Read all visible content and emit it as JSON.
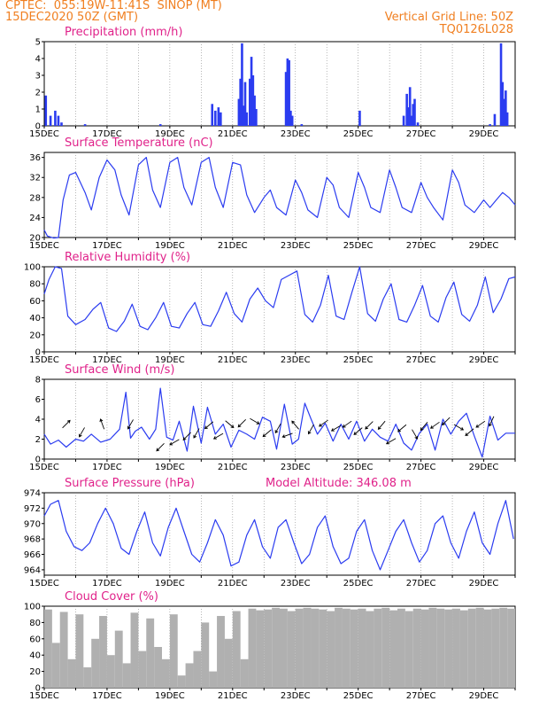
{
  "header": {
    "line1": "CPTEC:  055:19W-11:41S  SINOP (MT)",
    "line2": "15DEC2020 50Z (GMT)",
    "grid_note": "Vertical Grid Line: 50Z",
    "code": "TQ0126L028"
  },
  "colors": {
    "header": "#f07f20",
    "title": "#e0228a",
    "series": "#2b3cf0",
    "cloud": "#b0b0b0",
    "grid": "#888888"
  },
  "chart_data": [
    {
      "type": "bar",
      "title": "Precipitation (mm/h)",
      "ylim": [
        0,
        5
      ],
      "yticks": [
        "0",
        "1",
        "2",
        "3",
        "4",
        "5"
      ],
      "xticks": [
        "15DEC",
        "17DEC",
        "19DEC",
        "21DEC",
        "23DEC",
        "25DEC",
        "27DEC",
        "29DEC"
      ],
      "x_day_range": [
        15,
        30
      ],
      "day": [
        15.05,
        15.2,
        15.35,
        15.45,
        15.55,
        16.3,
        18.7,
        20.35,
        20.45,
        20.55,
        20.62,
        21.2,
        21.25,
        21.3,
        21.35,
        21.4,
        21.45,
        21.55,
        21.6,
        21.65,
        21.7,
        21.75,
        22.7,
        22.75,
        22.8,
        22.85,
        22.9,
        23.2,
        25.05,
        26.45,
        26.55,
        26.6,
        26.65,
        26.7,
        26.75,
        26.8,
        26.9,
        29.2,
        29.35,
        29.55,
        29.6,
        29.65,
        29.7,
        29.75
      ],
      "values": [
        1.8,
        0.6,
        0.9,
        0.6,
        0.2,
        0.1,
        0.1,
        1.3,
        0.9,
        1.1,
        0.8,
        1.6,
        2.8,
        4.9,
        1.2,
        2.6,
        0.8,
        2.8,
        4.1,
        3.0,
        1.8,
        1.0,
        3.2,
        4.0,
        3.9,
        0.9,
        0.6,
        0.1,
        0.9,
        0.6,
        1.9,
        1.1,
        2.3,
        0.6,
        1.3,
        1.6,
        0.2,
        0.1,
        0.7,
        4.9,
        2.6,
        1.6,
        2.1,
        0.8
      ]
    },
    {
      "type": "line",
      "title": "Surface Temperature (nC)",
      "ylim": [
        20,
        37
      ],
      "yticks": [
        "20",
        "24",
        "28",
        "32",
        "36"
      ],
      "xticks": [
        "15DEC",
        "17DEC",
        "19DEC",
        "21DEC",
        "23DEC",
        "25DEC",
        "27DEC",
        "29DEC"
      ],
      "x_day_range": [
        15,
        30
      ],
      "day": [
        15,
        15.1,
        15.3,
        15.45,
        15.6,
        15.8,
        16.0,
        16.3,
        16.5,
        16.75,
        17.0,
        17.25,
        17.45,
        17.7,
        18.0,
        18.25,
        18.45,
        18.7,
        19.0,
        19.25,
        19.45,
        19.7,
        20.0,
        20.25,
        20.45,
        20.7,
        21.0,
        21.25,
        21.45,
        21.7,
        22.0,
        22.2,
        22.4,
        22.7,
        23.0,
        23.2,
        23.4,
        23.7,
        24.0,
        24.2,
        24.4,
        24.7,
        25.0,
        25.2,
        25.4,
        25.7,
        26.0,
        26.2,
        26.4,
        26.7,
        27.0,
        27.2,
        27.4,
        27.7,
        28.0,
        28.2,
        28.4,
        28.7,
        29.0,
        29.2,
        29.4,
        29.6,
        29.8,
        30.0
      ],
      "values": [
        21.5,
        20.3,
        19.9,
        20.0,
        27.5,
        32.5,
        33,
        29,
        25.5,
        32,
        35.5,
        33.5,
        28.5,
        24.5,
        34.5,
        36,
        29.5,
        26,
        35,
        36,
        30,
        26.5,
        35,
        36,
        30,
        26,
        35,
        34.5,
        28.5,
        25,
        28,
        29.5,
        26,
        24.5,
        31.5,
        29,
        25.5,
        24,
        32,
        30.5,
        26,
        24,
        33,
        30,
        26,
        25,
        33.5,
        30,
        26,
        25,
        31,
        28,
        26,
        23.5,
        33.5,
        31,
        26.5,
        25,
        27.5,
        26,
        27.5,
        29,
        28,
        26.5
      ]
    },
    {
      "type": "line",
      "title": "Relative Humidity (%)",
      "ylim": [
        0,
        100
      ],
      "yticks": [
        "0",
        "20",
        "40",
        "60",
        "80",
        "100"
      ],
      "xticks": [
        "15DEC",
        "17DEC",
        "19DEC",
        "21DEC",
        "23DEC",
        "25DEC",
        "27DEC",
        "29DEC"
      ],
      "x_day_range": [
        15,
        30
      ],
      "day": [
        15,
        15.15,
        15.35,
        15.55,
        15.75,
        16.0,
        16.3,
        16.55,
        16.8,
        17.05,
        17.3,
        17.55,
        17.8,
        18.05,
        18.3,
        18.55,
        18.8,
        19.05,
        19.3,
        19.55,
        19.8,
        20.05,
        20.3,
        20.55,
        20.8,
        21.05,
        21.3,
        21.55,
        21.8,
        22.05,
        22.3,
        22.55,
        22.8,
        23.05,
        23.3,
        23.55,
        23.8,
        24.05,
        24.3,
        24.55,
        24.8,
        25.05,
        25.3,
        25.55,
        25.8,
        26.05,
        26.3,
        26.55,
        26.8,
        27.05,
        27.3,
        27.55,
        27.8,
        28.05,
        28.3,
        28.55,
        28.8,
        29.05,
        29.3,
        29.55,
        29.8,
        30.0
      ],
      "values": [
        68,
        85,
        100,
        98,
        42,
        32,
        38,
        50,
        58,
        28,
        24,
        36,
        56,
        30,
        26,
        40,
        58,
        30,
        28,
        45,
        58,
        32,
        30,
        48,
        70,
        45,
        35,
        62,
        75,
        60,
        52,
        85,
        90,
        95,
        44,
        35,
        55,
        90,
        42,
        38,
        70,
        100,
        45,
        36,
        62,
        80,
        38,
        35,
        55,
        78,
        42,
        35,
        64,
        82,
        44,
        36,
        55,
        88,
        46,
        62,
        86,
        88
      ]
    },
    {
      "type": "line",
      "title": "Surface Wind (m/s)",
      "ylim": [
        0,
        8
      ],
      "yticks": [
        "0",
        "2",
        "4",
        "6",
        "8"
      ],
      "xticks": [
        "15DEC",
        "17DEC",
        "19DEC",
        "21DEC",
        "23DEC",
        "25DEC",
        "27DEC",
        "29DEC"
      ],
      "x_day_range": [
        15,
        30
      ],
      "day": [
        15,
        15.2,
        15.45,
        15.7,
        16.0,
        16.25,
        16.5,
        16.8,
        17.1,
        17.4,
        17.6,
        17.75,
        17.9,
        18.1,
        18.35,
        18.55,
        18.7,
        18.9,
        19.1,
        19.3,
        19.55,
        19.75,
        20.0,
        20.2,
        20.45,
        20.7,
        20.95,
        21.2,
        21.45,
        21.7,
        21.95,
        22.2,
        22.4,
        22.65,
        22.9,
        23.1,
        23.3,
        23.5,
        23.7,
        23.95,
        24.2,
        24.45,
        24.7,
        24.95,
        25.2,
        25.45,
        25.7,
        25.95,
        26.2,
        26.45,
        26.7,
        26.95,
        27.2,
        27.45,
        27.7,
        27.95,
        28.2,
        28.45,
        28.7,
        28.95,
        29.2,
        29.45,
        29.7,
        30.0
      ],
      "values": [
        2.5,
        1.5,
        1.9,
        1.2,
        2.0,
        1.8,
        2.5,
        1.7,
        2.0,
        3.0,
        6.7,
        2.1,
        2.8,
        3.2,
        2.0,
        3.0,
        7.1,
        2.2,
        1.9,
        3.8,
        0.8,
        5.3,
        1.6,
        5.2,
        2.5,
        3.5,
        1.2,
        2.9,
        2.5,
        2.0,
        4.2,
        3.8,
        1.0,
        5.5,
        1.5,
        2.0,
        5.6,
        4.0,
        2.5,
        3.6,
        1.8,
        3.5,
        2.0,
        3.8,
        1.8,
        3.0,
        2.2,
        1.8,
        3.5,
        1.6,
        0.9,
        2.6,
        3.5,
        0.9,
        4.0,
        2.5,
        3.8,
        4.6,
        2.3,
        0.2,
        4.3,
        1.9,
        2.6,
        2.6
      ],
      "arrows_day": [
        15.7,
        16.2,
        16.85,
        17.75,
        18.7,
        19.15,
        19.55,
        19.85,
        20.25,
        20.55,
        20.9,
        21.3,
        21.7,
        22.1,
        22.45,
        22.75,
        23.0,
        23.5,
        23.9,
        24.3,
        24.65,
        25.0,
        25.35,
        25.75,
        26.05,
        26.4,
        26.8,
        27.1,
        27.45,
        27.8,
        28.2,
        28.55,
        28.9,
        29.25
      ],
      "arrows_y": [
        3.5,
        2.7,
        3.5,
        3.5,
        1.2,
        1.7,
        2.3,
        2.6,
        3.4,
        2.3,
        3.5,
        3.6,
        3.8,
        2.6,
        3.1,
        2.4,
        3.4,
        3.0,
        3.6,
        3.1,
        3.5,
        2.8,
        3.4,
        3.4,
        1.8,
        3.1,
        2.5,
        3.3,
        3.4,
        3.8,
        3.2,
        2.7,
        3.5,
        3.8
      ],
      "arrows_dir_deg": [
        315,
        120,
        250,
        120,
        135,
        150,
        135,
        120,
        140,
        150,
        40,
        135,
        30,
        140,
        120,
        160,
        230,
        120,
        145,
        150,
        145,
        140,
        135,
        130,
        150,
        140,
        60,
        130,
        145,
        135,
        30,
        140,
        145,
        115
      ]
    },
    {
      "type": "line",
      "title": "Surface Pressure (hPa)",
      "annotation": "Model Altitude: 346.08 m",
      "ylim": [
        963.3,
        974
      ],
      "yticks": [
        "964",
        "966",
        "968",
        "970",
        "972",
        "974"
      ],
      "xticks": [
        "15DEC",
        "17DEC",
        "19DEC",
        "21DEC",
        "23DEC",
        "25DEC",
        "27DEC",
        "29DEC"
      ],
      "x_day_range": [
        15,
        30
      ],
      "day": [
        15,
        15.2,
        15.45,
        15.7,
        15.95,
        16.2,
        16.45,
        16.7,
        16.95,
        17.2,
        17.45,
        17.7,
        17.95,
        18.2,
        18.45,
        18.7,
        18.95,
        19.2,
        19.45,
        19.7,
        19.95,
        20.2,
        20.45,
        20.7,
        20.95,
        21.2,
        21.45,
        21.7,
        21.95,
        22.2,
        22.45,
        22.7,
        22.95,
        23.2,
        23.45,
        23.7,
        23.95,
        24.2,
        24.45,
        24.7,
        24.95,
        25.2,
        25.45,
        25.7,
        25.95,
        26.2,
        26.45,
        26.7,
        26.95,
        27.2,
        27.45,
        27.7,
        27.95,
        28.2,
        28.45,
        28.7,
        28.95,
        29.2,
        29.45,
        29.7,
        29.95
      ],
      "values": [
        971,
        972.5,
        973,
        969,
        967,
        966.5,
        967.5,
        970,
        972,
        970,
        966.8,
        966,
        969,
        971.5,
        967.5,
        965.8,
        969.5,
        972,
        969,
        966,
        965,
        967.5,
        970.5,
        968.5,
        964.5,
        965,
        968.5,
        970.5,
        967,
        965.5,
        969.5,
        970.5,
        967.5,
        964.8,
        966,
        969.5,
        971,
        967,
        964.8,
        965.5,
        969,
        970.5,
        966.5,
        964,
        966.5,
        969,
        970.5,
        967.5,
        965,
        966.5,
        970,
        971,
        967.5,
        965.5,
        969,
        971.5,
        967.5,
        966,
        970,
        973,
        968
      ]
    },
    {
      "type": "bar",
      "title": "Cloud Cover (%)",
      "ylim": [
        0,
        100
      ],
      "yticks": [
        "0",
        "20",
        "40",
        "60",
        "80",
        "100"
      ],
      "xticks": [
        "15DEC",
        "17DEC",
        "19DEC",
        "21DEC",
        "23DEC",
        "25DEC",
        "27DEC",
        "29DEC"
      ],
      "x_day_range": [
        15,
        30
      ],
      "day": [
        15.0,
        15.25,
        15.5,
        15.75,
        16.0,
        16.25,
        16.5,
        16.75,
        17.0,
        17.25,
        17.5,
        17.75,
        18.0,
        18.25,
        18.5,
        18.75,
        19.0,
        19.25,
        19.5,
        19.75,
        20.0,
        20.25,
        20.5,
        20.75,
        21.0,
        21.25,
        21.5,
        21.75,
        22.0,
        22.25,
        22.5,
        22.75,
        23.0,
        23.25,
        23.5,
        23.75,
        24.0,
        24.25,
        24.5,
        24.75,
        25.0,
        25.25,
        25.5,
        25.75,
        26.0,
        26.25,
        26.5,
        26.75,
        27.0,
        27.25,
        27.5,
        27.75,
        28.0,
        28.25,
        28.5,
        28.75,
        29.0,
        29.25,
        29.5,
        29.75
      ],
      "values": [
        96,
        55,
        93,
        35,
        90,
        25,
        60,
        88,
        40,
        70,
        30,
        92,
        45,
        85,
        50,
        35,
        90,
        15,
        30,
        45,
        80,
        20,
        88,
        60,
        94,
        35,
        97,
        95,
        96,
        98,
        97,
        94,
        97,
        98,
        97,
        96,
        94,
        98,
        97,
        96,
        97,
        94,
        97,
        98,
        95,
        97,
        94,
        97,
        96,
        98,
        97,
        96,
        97,
        95,
        97,
        98,
        96,
        97,
        98,
        97
      ]
    }
  ]
}
